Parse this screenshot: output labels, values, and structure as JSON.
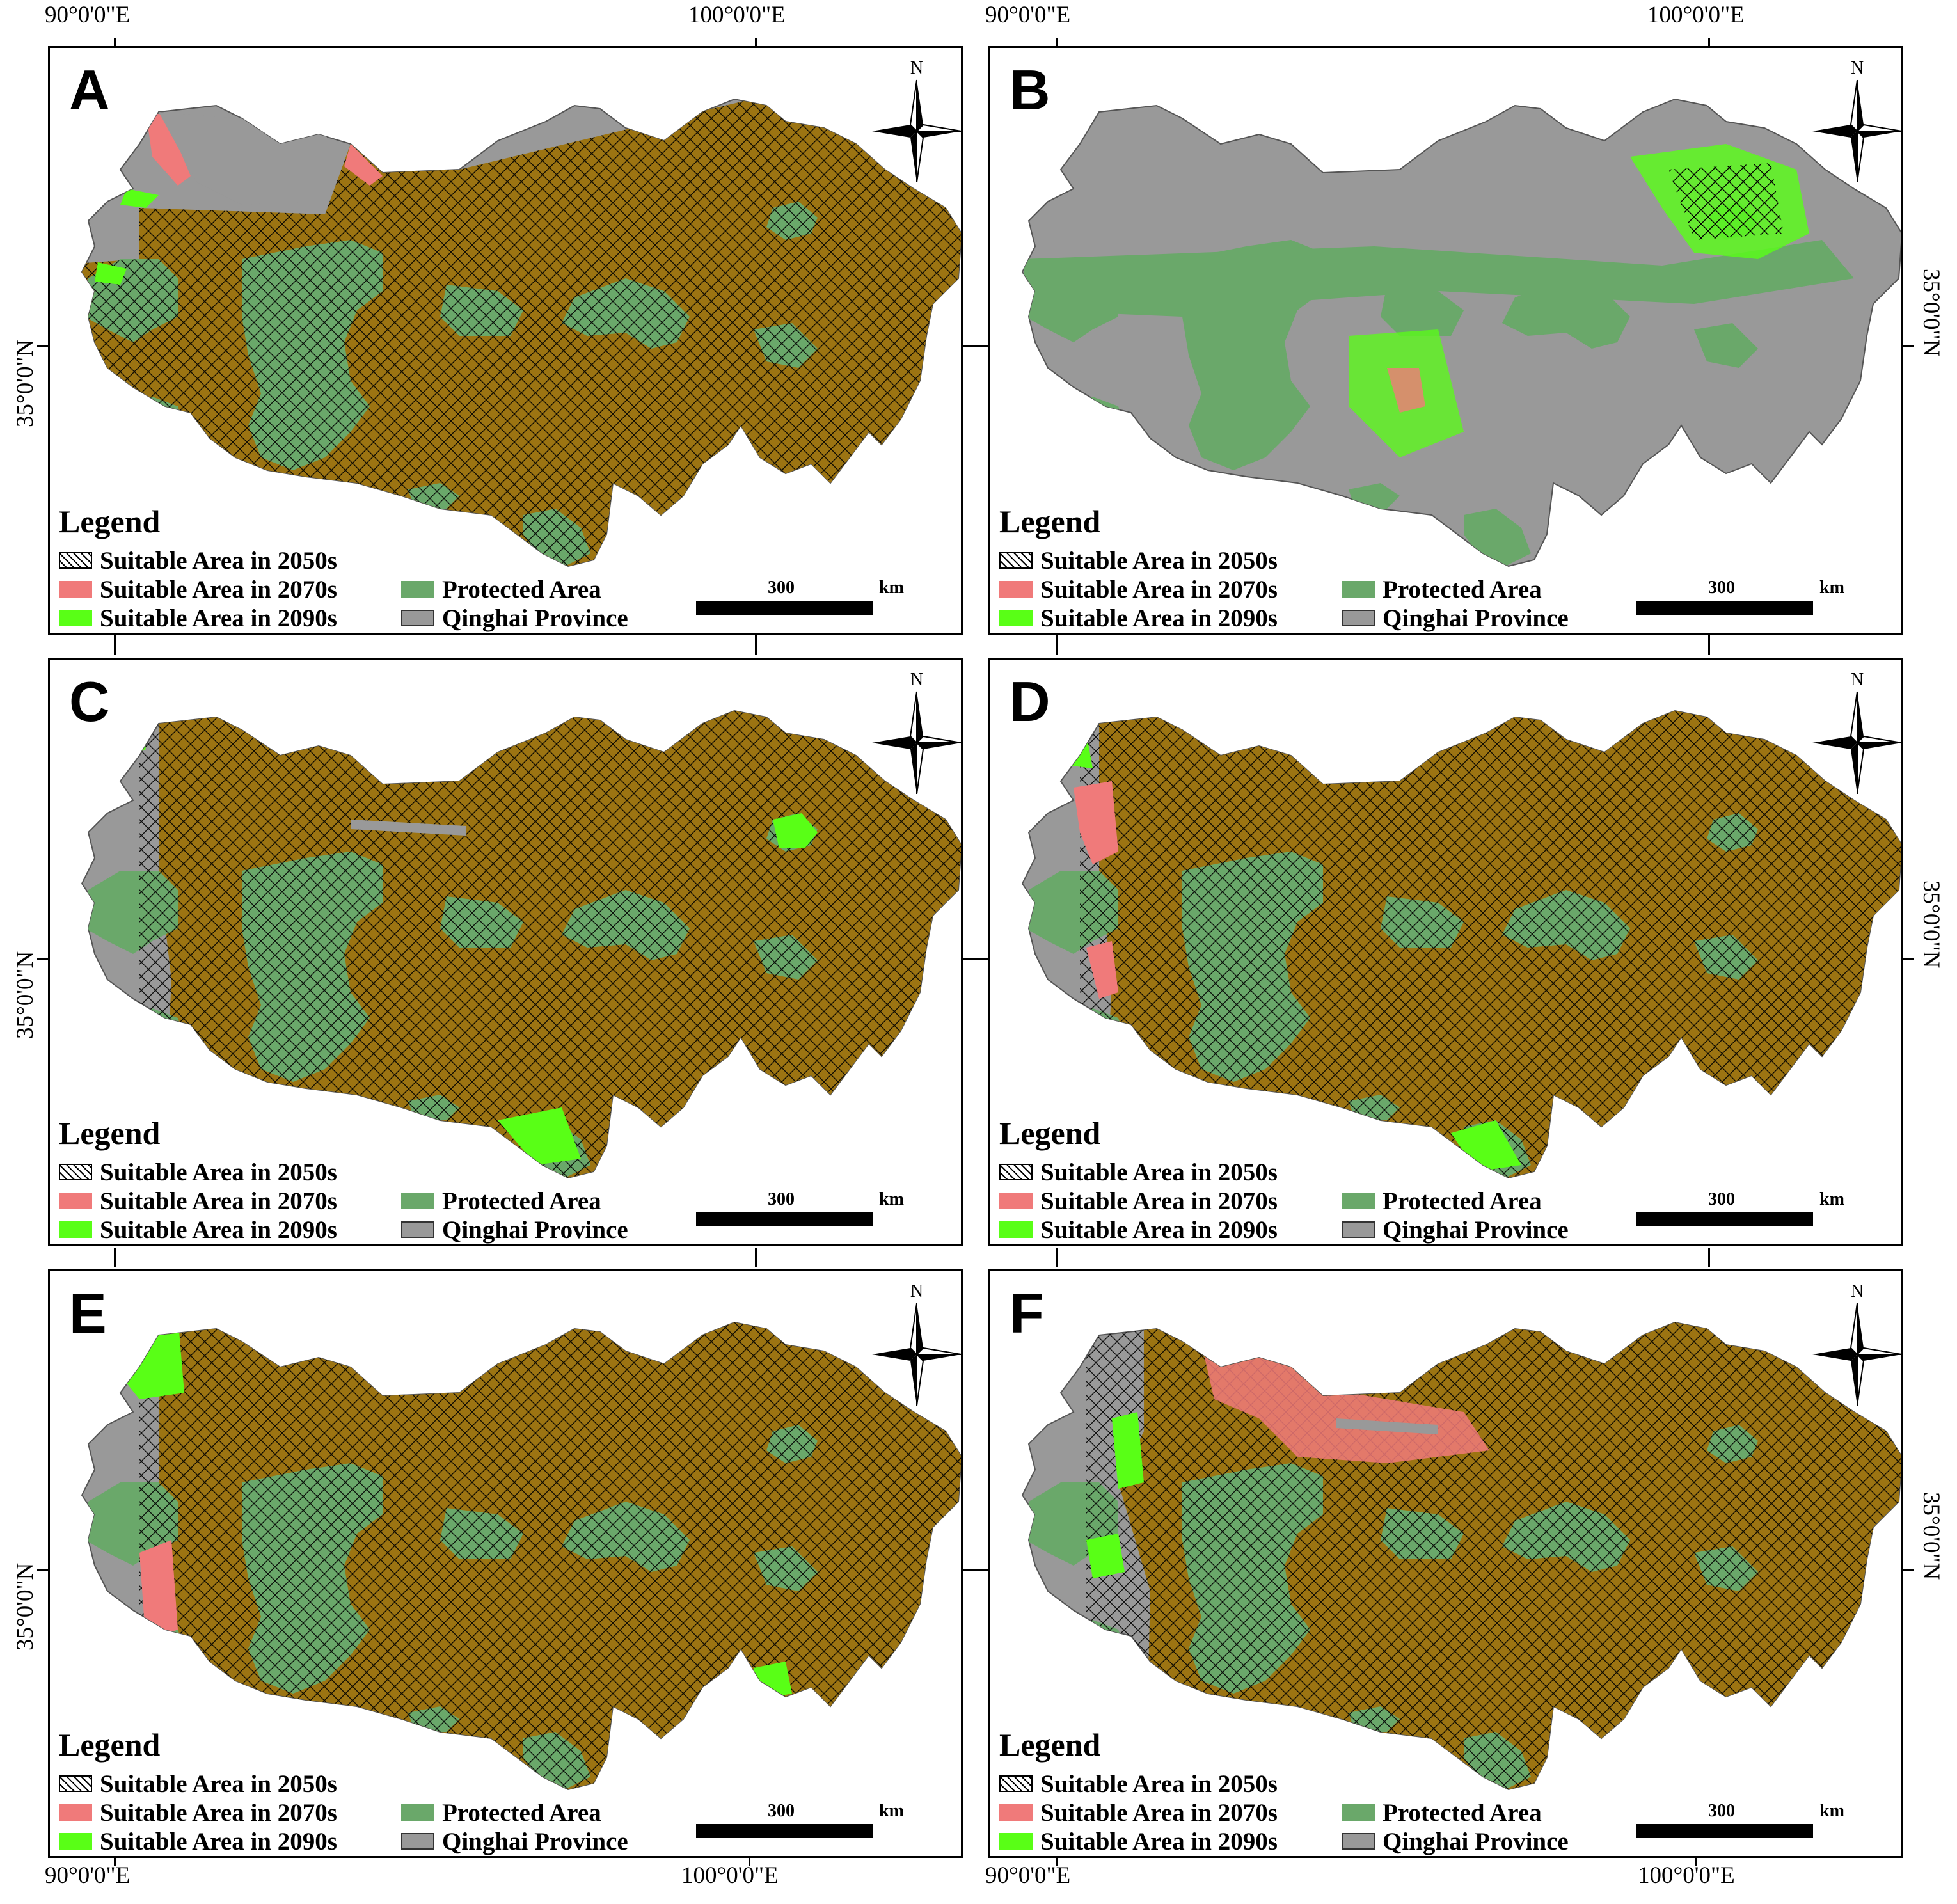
{
  "axes": {
    "lon_left": "90°0'0\"E",
    "lon_right": "100°0'0\"E",
    "lat": "35°0'0\"N"
  },
  "legend": {
    "title": "Legend",
    "items": {
      "s2050": "Suitable Area in 2050s",
      "s2070": "Suitable Area in 2070s",
      "s2090": "Suitable Area in 2090s",
      "protected": "Protected Area",
      "province": "Qinghai Province"
    },
    "colors": {
      "s2070": "#f07a7a",
      "s2090": "#59ff16",
      "protected": "#6aa86a",
      "province": "#999999",
      "suitable_fill": "#9c7412"
    }
  },
  "scale": {
    "value": "300",
    "unit": "km"
  },
  "compass": {
    "label": "N"
  },
  "panels": [
    {
      "letter": "A",
      "variant": "suitable_most"
    },
    {
      "letter": "B",
      "variant": "sparse_green"
    },
    {
      "letter": "C",
      "variant": "suitable_green_west"
    },
    {
      "letter": "D",
      "variant": "suitable_red_west"
    },
    {
      "letter": "E",
      "variant": "suitable_green_red_west"
    },
    {
      "letter": "F",
      "variant": "suitable_red_north"
    }
  ]
}
